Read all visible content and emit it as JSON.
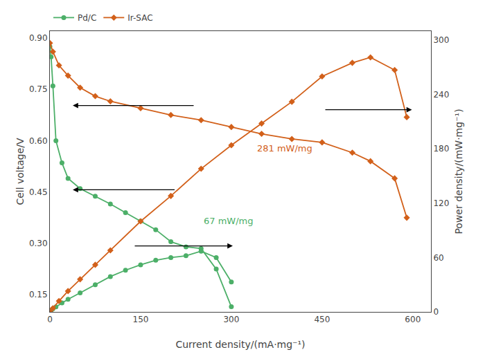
{
  "chart_data": {
    "type": "line",
    "xlabel": "Current density/(mA·mg⁻¹)",
    "ylabel": "Cell voltage/V",
    "y2label": "Power density/(mW·mg⁻¹)",
    "xlim": [
      0,
      630
    ],
    "xticks": [
      0,
      150,
      300,
      450,
      600
    ],
    "ylim": [
      0.1,
      0.92
    ],
    "yticks": [
      0.15,
      {
        "value": 0.3,
        "label": "0.30"
      },
      0.45,
      {
        "value": 0.6,
        "label": "0.60"
      },
      0.75,
      {
        "value": 0.9,
        "label": "0.90"
      }
    ],
    "y2lim": [
      0,
      310
    ],
    "y2ticks": [
      0,
      60,
      120,
      180,
      240,
      300
    ],
    "legend": "upper left",
    "grid": false,
    "series": [
      {
        "name": "Pd/C",
        "color": "#4caf68",
        "marker": "circle",
        "x": [
          0,
          2,
          5,
          10,
          20,
          30,
          50,
          75,
          100,
          125,
          150,
          175,
          200,
          225,
          250,
          275,
          300
        ],
        "values": [
          0.875,
          0.845,
          0.76,
          0.6,
          0.535,
          0.49,
          0.46,
          0.438,
          0.415,
          0.39,
          0.365,
          0.34,
          0.305,
          0.29,
          0.285,
          0.225,
          0.115
        ]
      },
      {
        "name": "Ir-SAC",
        "color": "#d2601a",
        "marker": "diamond",
        "x": [
          0,
          5,
          15,
          30,
          50,
          75,
          100,
          150,
          200,
          250,
          300,
          350,
          400,
          450,
          500,
          530,
          570,
          590
        ],
        "values": [
          0.885,
          0.86,
          0.82,
          0.79,
          0.755,
          0.73,
          0.715,
          0.695,
          0.675,
          0.66,
          0.64,
          0.62,
          0.605,
          0.595,
          0.565,
          0.54,
          0.49,
          0.375
        ]
      },
      {
        "color": "#4caf68",
        "marker": "circle",
        "axis": "y2",
        "x": [
          0,
          2,
          5,
          10,
          20,
          30,
          50,
          75,
          100,
          125,
          150,
          175,
          200,
          225,
          250,
          275,
          300
        ],
        "values": [
          0,
          1.5,
          3.5,
          5.5,
          10,
          14,
          21,
          30,
          39,
          46,
          52,
          57,
          60,
          62,
          67,
          60,
          33
        ]
      },
      {
        "color": "#d2601a",
        "marker": "diamond",
        "axis": "y2",
        "x": [
          0,
          5,
          15,
          30,
          50,
          75,
          100,
          150,
          200,
          250,
          300,
          350,
          400,
          450,
          500,
          530,
          570,
          590
        ],
        "values": [
          0,
          4,
          12,
          23,
          36,
          52,
          68,
          100,
          128,
          158,
          184,
          208,
          232,
          260,
          275,
          281,
          267,
          215
        ]
      }
    ],
    "annotations": [
      {
        "text": "281 mW/mg",
        "color": "#d2601a"
      },
      {
        "text": "67 mW/mg",
        "color": "#4caf68"
      }
    ]
  }
}
